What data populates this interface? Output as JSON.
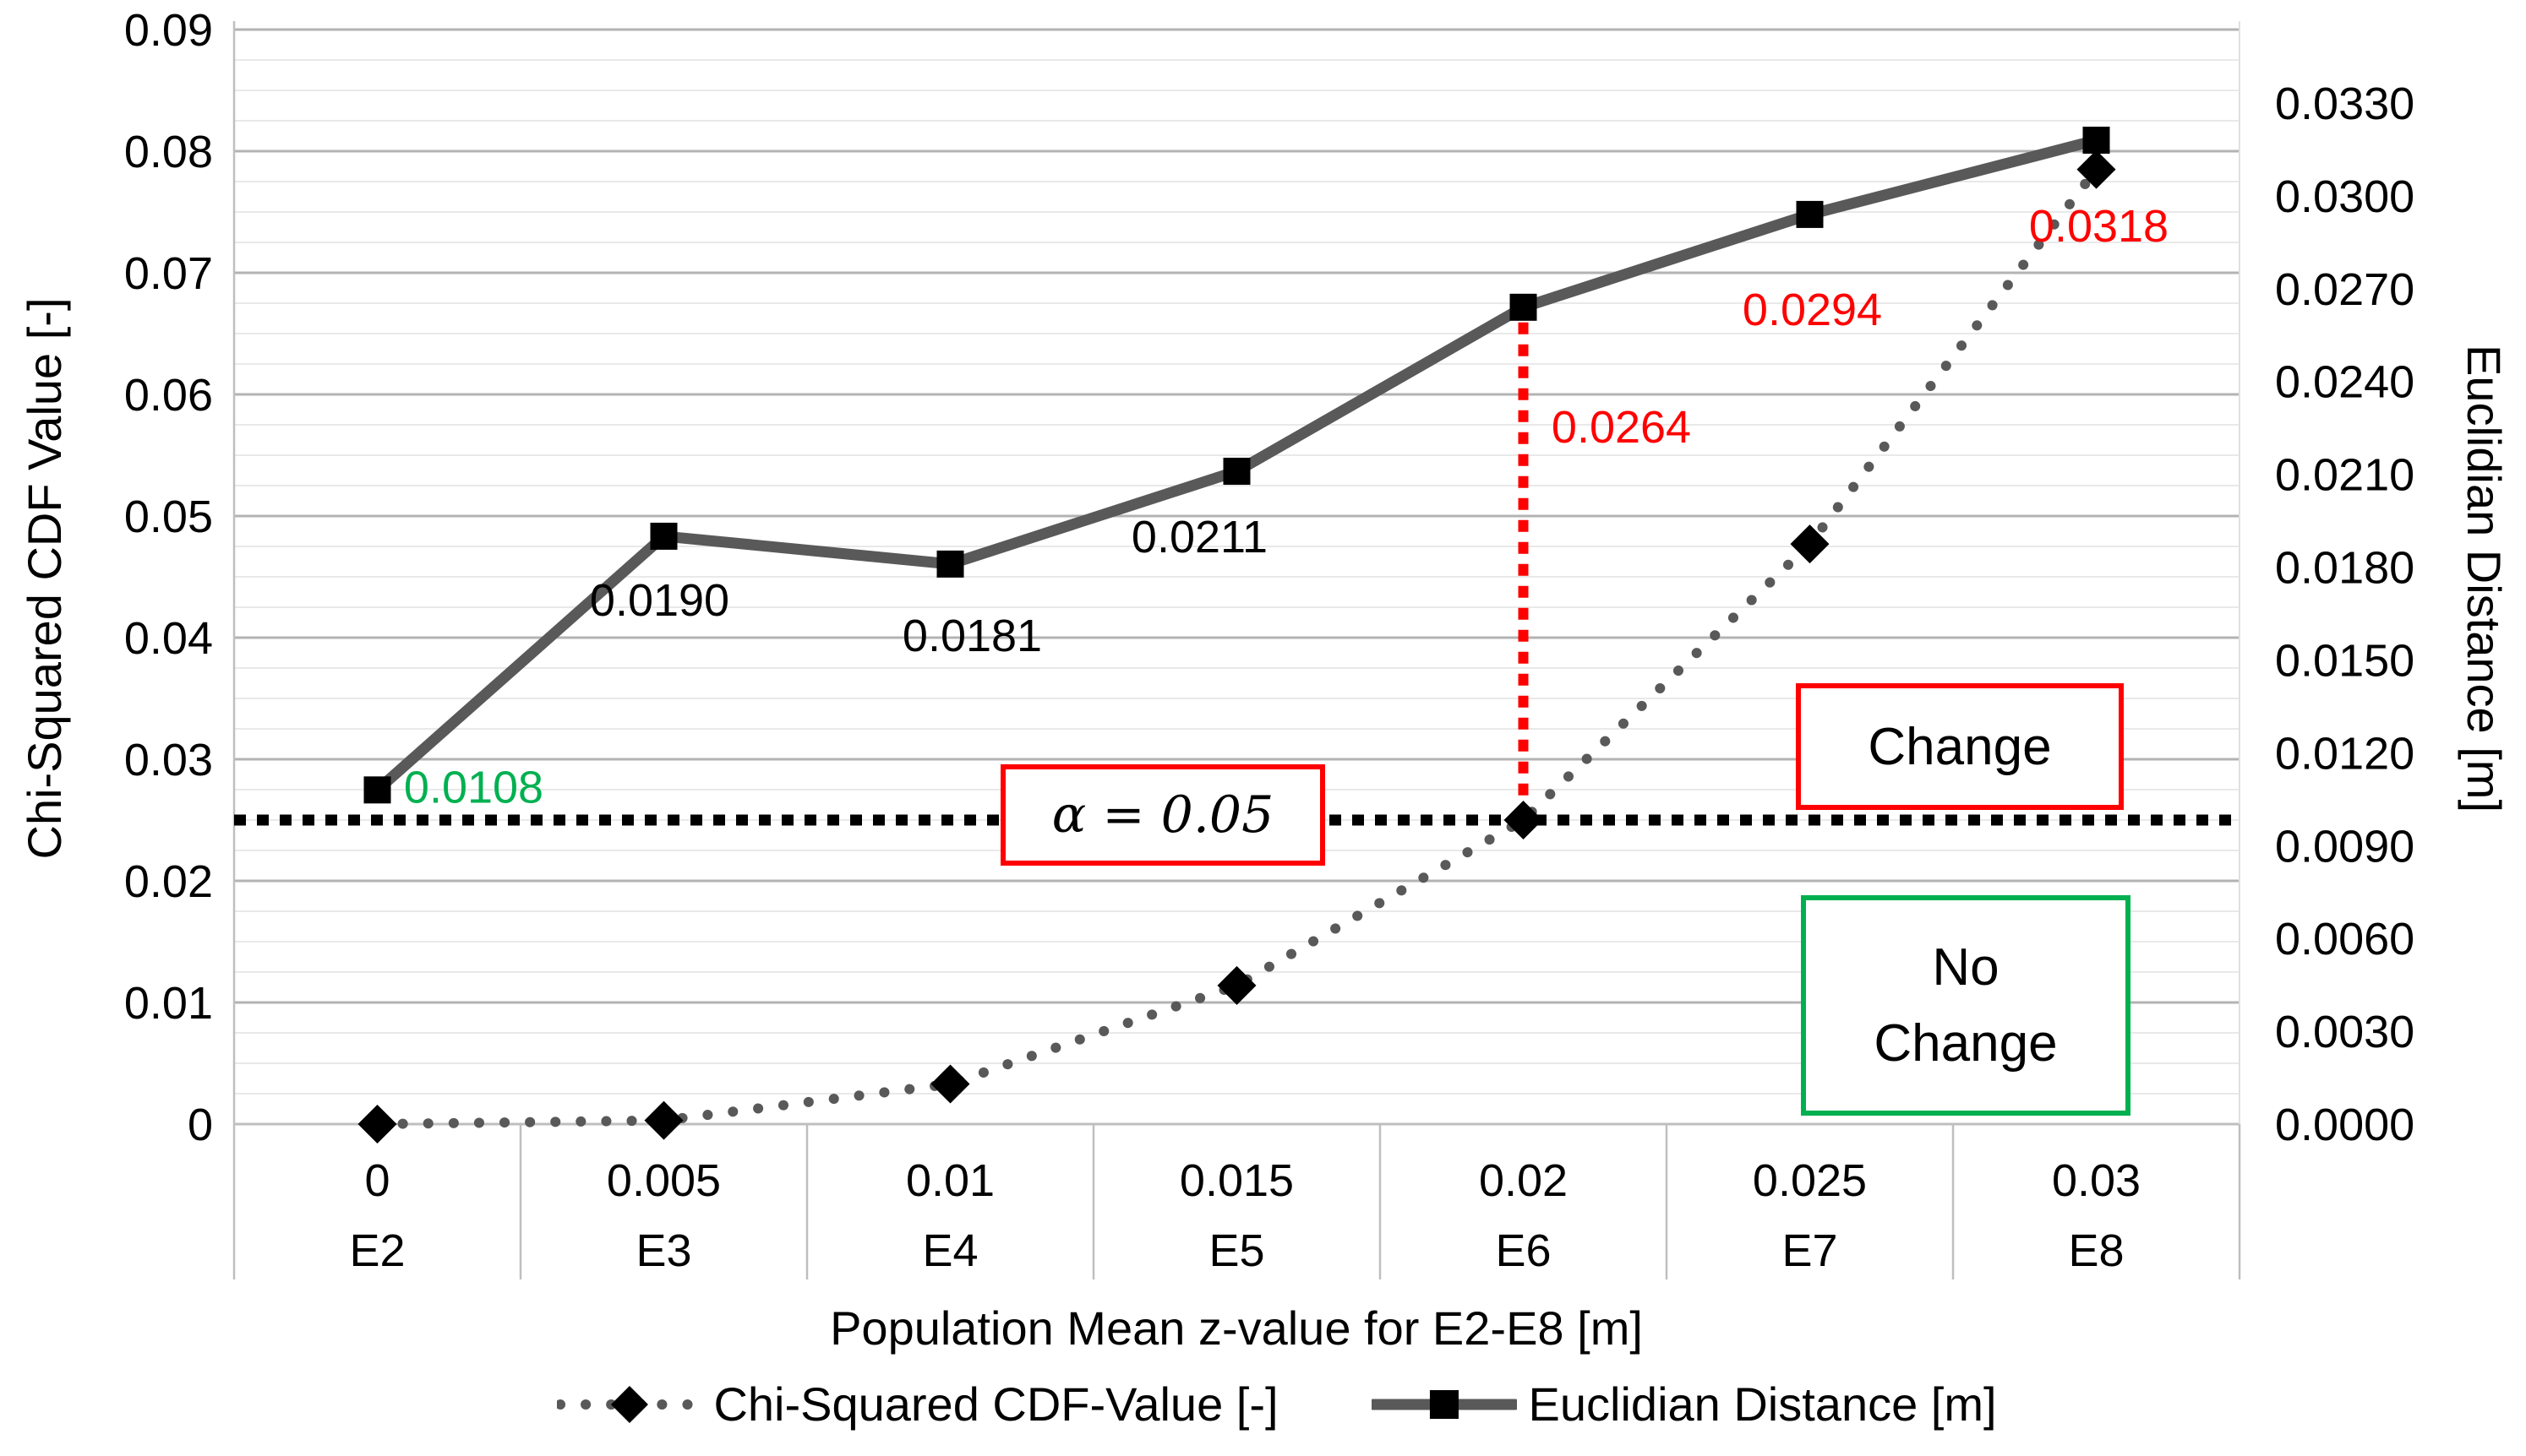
{
  "chart_data": {
    "type": "line",
    "title": "",
    "xlabel": "Population Mean z-value for E2-E8 [m]",
    "x_axis": {
      "tick_values": [
        "0",
        "0.005",
        "0.01",
        "0.015",
        "0.02",
        "0.025",
        "0.03"
      ],
      "tick_names": [
        "E2",
        "E3",
        "E4",
        "E5",
        "E6",
        "E7",
        "E8"
      ]
    },
    "left_axis": {
      "label": "Chi-Squared CDF Value [-]",
      "min": 0,
      "max": 0.09,
      "major_step": 0.01,
      "minor_step": 0.0025,
      "tick_labels": [
        "0",
        "0.01",
        "0.02",
        "0.03",
        "0.04",
        "0.05",
        "0.06",
        "0.07",
        "0.08",
        "0.09"
      ]
    },
    "right_axis": {
      "label": "Euclidian Distance [m]",
      "min": 0,
      "max": 0.033,
      "major_step": 0.003,
      "tick_labels": [
        "0.0000",
        "0.0030",
        "0.0060",
        "0.0090",
        "0.0120",
        "0.0150",
        "0.0180",
        "0.0210",
        "0.0240",
        "0.0270",
        "0.0300",
        "0.0330"
      ]
    },
    "series": [
      {
        "name": "Chi-Squared CDF-Value [-]",
        "axis": "left",
        "line_style": "round-dot",
        "marker": "diamond",
        "color": "#595959",
        "marker_color": "#000000",
        "values": [
          0.0,
          0.0003,
          0.0033,
          0.0114,
          0.025,
          0.0477,
          0.0785
        ]
      },
      {
        "name": "Euclidian Distance [m]",
        "axis": "right",
        "line_style": "solid",
        "marker": "square",
        "color": "#595959",
        "marker_color": "#000000",
        "values": [
          0.0108,
          0.019,
          0.0181,
          0.0211,
          0.0264,
          0.0294,
          0.0318
        ],
        "data_labels": [
          {
            "text": "0.0108",
            "color": "#00B050"
          },
          {
            "text": "0.0190",
            "color": "#000000"
          },
          {
            "text": "0.0181",
            "color": "#000000"
          },
          {
            "text": "0.0211",
            "color": "#000000"
          },
          {
            "text": "0.0264",
            "color": "#FF0000"
          },
          {
            "text": "0.0294",
            "color": "#FF0000"
          },
          {
            "text": "0.0318",
            "color": "#FF0000"
          }
        ]
      }
    ],
    "annotations": {
      "alpha_line": {
        "axis": "left",
        "value": 0.025,
        "style": "dotted",
        "color": "#000000"
      },
      "alpha_box": {
        "label": "α = 0.05",
        "border_color": "#FF0000"
      },
      "change_box": {
        "label": "Change",
        "border_color": "#FF0000"
      },
      "no_change_box": {
        "line1": "No",
        "line2": "Change",
        "border_color": "#00B050"
      },
      "threshold_drop_line": {
        "category": "E6",
        "from_axis": "right",
        "from_value": 0.0264,
        "to_axis": "left",
        "to_value": 0.025,
        "color": "#FF0000",
        "style": "dotted"
      }
    },
    "legend": {
      "position": "bottom",
      "items": [
        "Chi-Squared CDF-Value [-]",
        "Euclidian Distance [m]"
      ]
    },
    "grid": {
      "major_color": "#b3b3b3",
      "minor_color": "#e9e9e9",
      "axis_line_color": "#bfbfbf"
    }
  }
}
